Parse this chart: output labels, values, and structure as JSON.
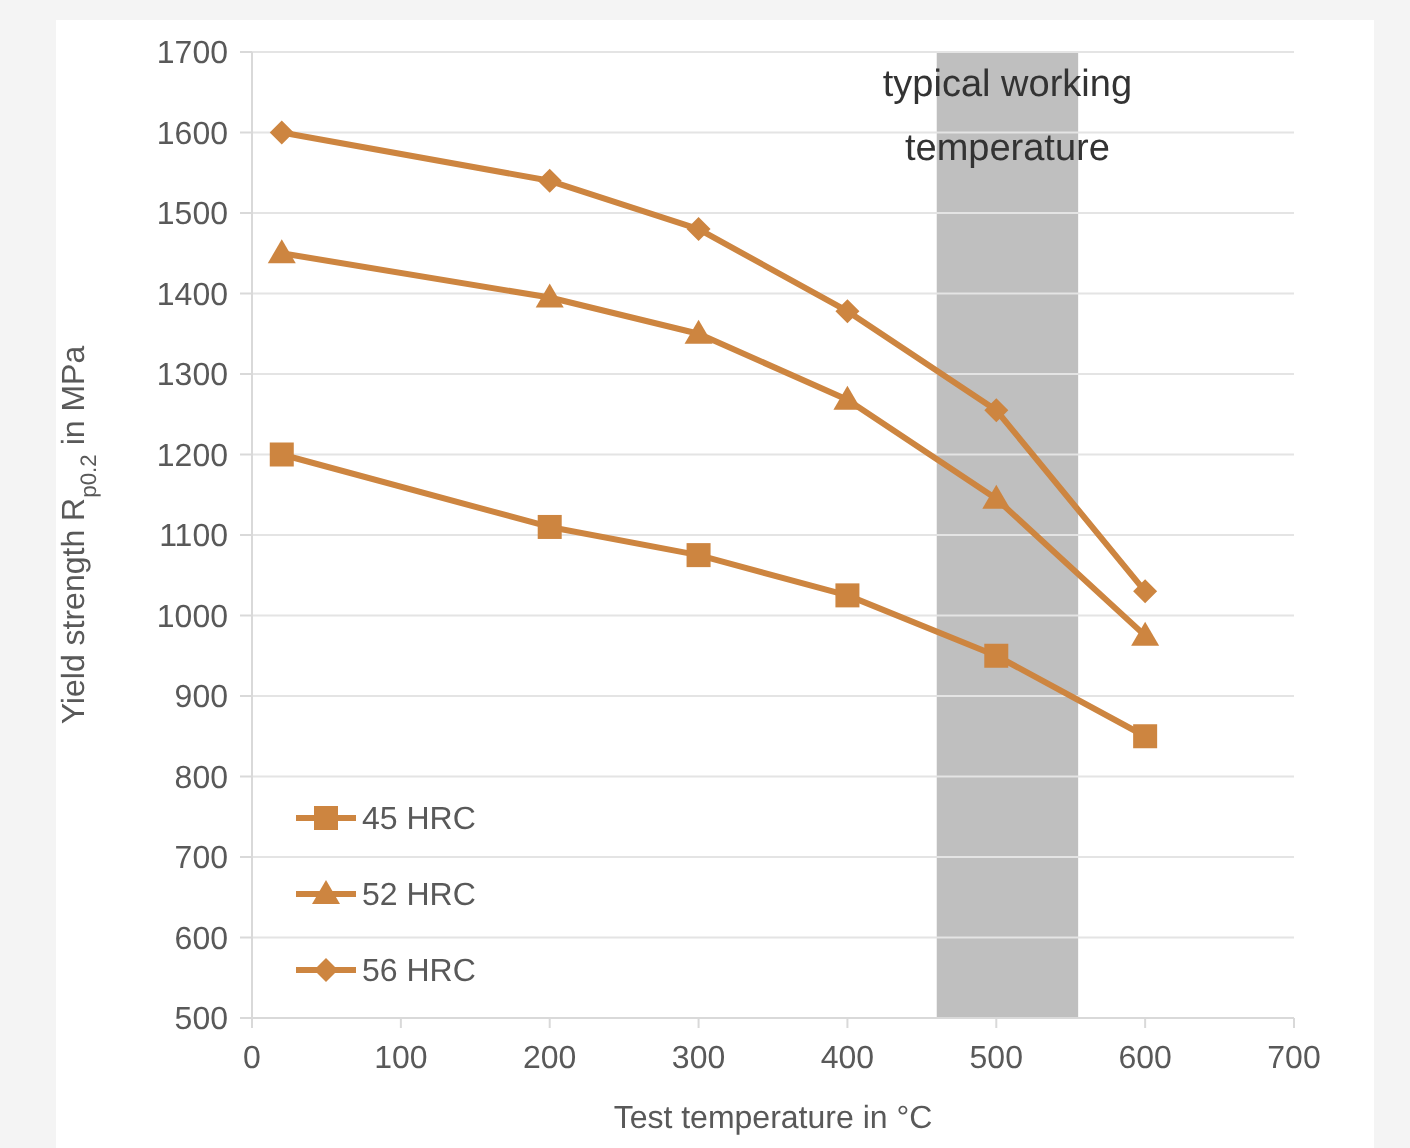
{
  "chart_data": {
    "type": "line",
    "xlabel": "Test temperature in °C",
    "ylabel": "Yield strength R$_{p0.2}$ in MPa",
    "x": [
      20,
      200,
      300,
      400,
      500,
      600
    ],
    "series": [
      {
        "name": "45 HRC",
        "color": "#cd8540",
        "marker": "square",
        "values": [
          1200,
          1110,
          1075,
          1025,
          950,
          850
        ]
      },
      {
        "name": "52 HRC",
        "color": "#cd8540",
        "marker": "triangle",
        "values": [
          1450,
          1395,
          1350,
          1268,
          1145,
          975
        ]
      },
      {
        "name": "56 HRC",
        "color": "#cd8540",
        "marker": "diamond",
        "values": [
          1600,
          1540,
          1480,
          1378,
          1255,
          1030
        ]
      }
    ],
    "xlim": [
      0,
      700
    ],
    "xticks": [
      0,
      100,
      200,
      300,
      400,
      500,
      600,
      700
    ],
    "ylim": [
      500,
      1700
    ],
    "yticks": [
      500,
      600,
      700,
      800,
      900,
      1000,
      1100,
      1200,
      1300,
      1400,
      1500,
      1600,
      1700
    ],
    "bands": [
      {
        "axis": "x",
        "from": 460,
        "to": 555,
        "label": "typical working temperature",
        "color": "#bfbfbf"
      }
    ],
    "grid": "y",
    "legend": "bottom left"
  }
}
